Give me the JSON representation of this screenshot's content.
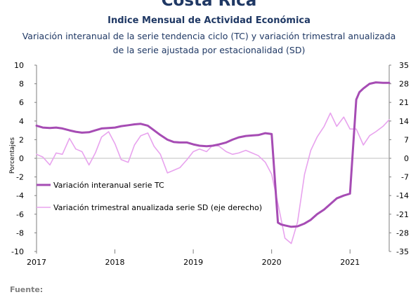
{
  "chart_data": {
    "type": "line",
    "title": "Costa Rica",
    "subtitle": "Indice Mensual de  Actividad Económica",
    "description": [
      "Variación interanual de la serie tendencia ciclo (TC) y variación trimestral anualizada",
      "de la serie ajustada por estacionalidad (SD)"
    ],
    "ylabel": "Porcentajes",
    "ylim": [
      -10,
      10
    ],
    "y2lim": [
      -35,
      35
    ],
    "yticks": [
      "10",
      "8",
      "6",
      "4",
      "2",
      "0",
      "-2",
      "-4",
      "-6",
      "-8",
      "-10"
    ],
    "y2ticks": [
      "35",
      "28",
      "21",
      "14",
      "7",
      "0",
      "-7",
      "-14",
      "-21",
      "-28",
      "-35"
    ],
    "xticks": [
      "2017",
      "2018",
      "2019",
      "2020",
      "2021"
    ],
    "xlim": [
      2017.0,
      2021.5
    ],
    "legend_position": "center-left",
    "colors": {
      "tc": "#a64cb4",
      "sd": "#e8a3ee",
      "ticks_right": "#c00000",
      "ticks_left": "#000000"
    },
    "series": [
      {
        "name": "Variación interanual serie TC",
        "axis": "left",
        "x": [
          2017.0,
          2017.08,
          2017.17,
          2017.25,
          2017.33,
          2017.42,
          2017.5,
          2017.58,
          2017.67,
          2017.75,
          2017.83,
          2017.92,
          2018.0,
          2018.08,
          2018.17,
          2018.25,
          2018.33,
          2018.42,
          2018.5,
          2018.58,
          2018.67,
          2018.75,
          2018.83,
          2018.92,
          2019.0,
          2019.08,
          2019.17,
          2019.25,
          2019.33,
          2019.42,
          2019.5,
          2019.58,
          2019.67,
          2019.75,
          2019.83,
          2019.92,
          2020.0,
          2020.08,
          2020.12,
          2020.17,
          2020.25,
          2020.33,
          2020.42,
          2020.5,
          2020.58,
          2020.67,
          2020.75,
          2020.83,
          2020.92,
          2021.0,
          2021.08,
          2021.12,
          2021.17,
          2021.25,
          2021.33,
          2021.42,
          2021.5
        ],
        "values": [
          3.5,
          3.3,
          3.25,
          3.3,
          3.2,
          3.0,
          2.85,
          2.75,
          2.8,
          3.0,
          3.2,
          3.25,
          3.3,
          3.45,
          3.55,
          3.65,
          3.7,
          3.5,
          3.0,
          2.5,
          2.0,
          1.75,
          1.7,
          1.7,
          1.5,
          1.35,
          1.3,
          1.35,
          1.5,
          1.7,
          2.0,
          2.25,
          2.4,
          2.45,
          2.5,
          2.7,
          2.6,
          -6.9,
          -7.1,
          -7.2,
          -7.35,
          -7.3,
          -7.0,
          -6.6,
          -6.0,
          -5.5,
          -4.9,
          -4.3,
          -4.0,
          -3.8,
          6.3,
          7.1,
          7.5,
          8.0,
          8.15,
          8.1,
          8.1
        ]
      },
      {
        "name": "Variación trimestral anualizada serie SD (eje derecho)",
        "axis": "right",
        "x": [
          2017.0,
          2017.08,
          2017.17,
          2017.25,
          2017.33,
          2017.42,
          2017.5,
          2017.58,
          2017.67,
          2017.75,
          2017.83,
          2017.92,
          2018.0,
          2018.08,
          2018.17,
          2018.25,
          2018.33,
          2018.42,
          2018.5,
          2018.58,
          2018.67,
          2018.75,
          2018.83,
          2018.92,
          2019.0,
          2019.08,
          2019.17,
          2019.25,
          2019.33,
          2019.42,
          2019.5,
          2019.58,
          2019.67,
          2019.75,
          2019.83,
          2019.92,
          2020.0,
          2020.08,
          2020.17,
          2020.25,
          2020.33,
          2020.42,
          2020.5,
          2020.58,
          2020.67,
          2020.75,
          2020.83,
          2020.92,
          2021.0,
          2021.08,
          2021.17,
          2021.25,
          2021.33,
          2021.42,
          2021.5
        ],
        "values": [
          1.5,
          0.5,
          -2.5,
          2.0,
          1.5,
          7.5,
          3.5,
          2.5,
          -2.5,
          2.0,
          8.0,
          10.0,
          5.5,
          -0.5,
          -1.5,
          5.0,
          8.5,
          9.5,
          4.5,
          1.5,
          -5.5,
          -4.5,
          -3.5,
          -0.5,
          2.5,
          3.5,
          2.5,
          5.0,
          4.5,
          2.5,
          1.5,
          2.0,
          3.0,
          2.0,
          1.0,
          -1.5,
          -6.0,
          -17.0,
          -30.0,
          -32.0,
          -24.0,
          -6.0,
          3.0,
          8.0,
          12.0,
          17.0,
          12.0,
          15.5,
          11.0,
          11.0,
          5.0,
          8.5,
          10.0,
          12.0,
          14.5
        ]
      }
    ]
  }
}
